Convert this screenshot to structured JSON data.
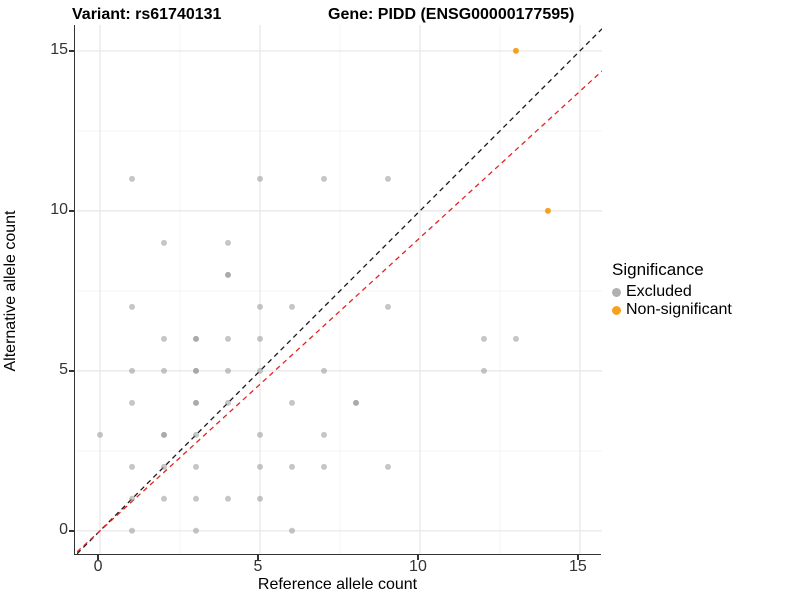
{
  "titles": {
    "variant": "Variant: rs61740131",
    "gene": "Gene: PIDD (ENSG00000177595)"
  },
  "chart_data": {
    "type": "scatter",
    "xlabel": "Reference allele count",
    "ylabel": "Alternative allele count",
    "xlim": [
      -0.72,
      15.69
    ],
    "ylim": [
      -0.72,
      15.81
    ],
    "xticks": [
      0,
      5,
      10,
      15
    ],
    "yticks": [
      0,
      5,
      10,
      15
    ],
    "xticks_minor": [
      2.5,
      7.5,
      12.5
    ],
    "yticks_minor": [
      2.5,
      7.5,
      12.5
    ],
    "grid": "major+minor",
    "legend": {
      "title": "Significance",
      "position": "right",
      "entries": [
        {
          "label": "Excluded",
          "color": "#B0B0B0"
        },
        {
          "label": "Non-significant",
          "color": "#F7A11F"
        }
      ]
    },
    "series": [
      {
        "name": "Excluded",
        "color": "#8E8E8E",
        "opacity": 0.5,
        "points": [
          [
            1,
            0,
            1
          ],
          [
            3,
            0,
            1
          ],
          [
            6,
            0,
            1
          ],
          [
            1,
            1,
            1
          ],
          [
            2,
            1,
            1
          ],
          [
            3,
            1,
            1
          ],
          [
            4,
            1,
            1
          ],
          [
            5,
            1,
            1
          ],
          [
            1,
            2,
            1
          ],
          [
            2,
            2,
            1
          ],
          [
            3,
            2,
            1
          ],
          [
            5,
            2,
            1
          ],
          [
            6,
            2,
            1
          ],
          [
            7,
            2,
            1
          ],
          [
            9,
            2,
            1
          ],
          [
            0,
            3,
            1
          ],
          [
            2,
            3,
            2
          ],
          [
            3,
            3,
            1
          ],
          [
            5,
            3,
            1
          ],
          [
            7,
            3,
            1
          ],
          [
            1,
            4,
            1
          ],
          [
            3,
            4,
            2
          ],
          [
            4,
            4,
            1
          ],
          [
            6,
            4,
            1
          ],
          [
            8,
            4,
            2
          ],
          [
            1,
            5,
            1
          ],
          [
            2,
            5,
            1
          ],
          [
            3,
            5,
            2
          ],
          [
            4,
            5,
            1
          ],
          [
            5,
            5,
            1
          ],
          [
            7,
            5,
            1
          ],
          [
            12,
            5,
            1
          ],
          [
            2,
            6,
            1
          ],
          [
            3,
            6,
            2
          ],
          [
            4,
            6,
            1
          ],
          [
            5,
            6,
            1
          ],
          [
            12,
            6,
            1
          ],
          [
            13,
            6,
            1
          ],
          [
            1,
            7,
            1
          ],
          [
            5,
            7,
            1
          ],
          [
            6,
            7,
            1
          ],
          [
            9,
            7,
            1
          ],
          [
            4,
            8,
            2
          ],
          [
            2,
            9,
            1
          ],
          [
            4,
            9,
            1
          ],
          [
            1,
            11,
            1
          ],
          [
            5,
            11,
            1
          ],
          [
            7,
            11,
            1
          ],
          [
            9,
            11,
            1
          ]
        ]
      },
      {
        "name": "Non-significant",
        "color": "#F7A11F",
        "opacity": 1,
        "points": [
          [
            13,
            15,
            1
          ],
          [
            14,
            10,
            1
          ]
        ]
      }
    ],
    "lines": [
      {
        "name": "identity-line",
        "color": "#1A1A1A",
        "slope": 1,
        "intercept": 0,
        "dashed": true
      },
      {
        "name": "expected-ratio-line",
        "color": "#E62320",
        "slope": 0.916,
        "intercept": 0,
        "dashed": true
      }
    ]
  },
  "style": {
    "axis_color": "#333333",
    "grid_major_color": "#E6E6E6",
    "grid_minor_color": "#F4F4F4"
  }
}
